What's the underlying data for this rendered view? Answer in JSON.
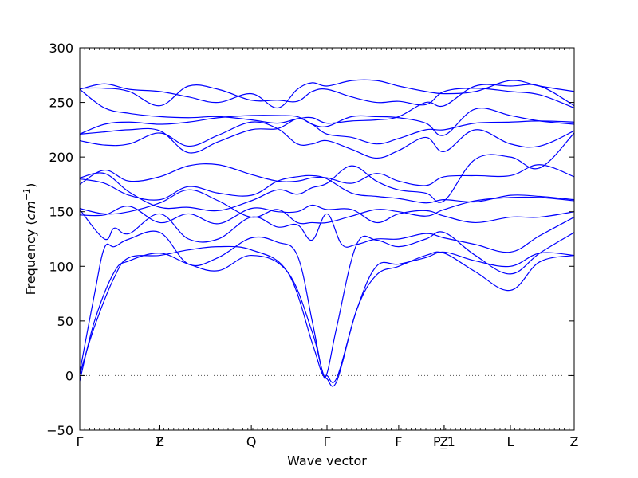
{
  "chart_data": {
    "type": "line",
    "title": "",
    "xlabel": "Wave vector",
    "ylabel_prefix": "Frequency (",
    "ylabel_unit_base": "cm",
    "ylabel_unit_exp": "−1",
    "ylabel_suffix": ")",
    "ylim": [
      -50,
      300
    ],
    "yticks": [
      -50,
      0,
      50,
      100,
      150,
      200,
      250,
      300
    ],
    "xlim": [
      0,
      1
    ],
    "zero_line": true,
    "colors": {
      "band": "#0000ff",
      "axis": "#000000"
    },
    "high_symmetry_points": [
      {
        "label": "Γ",
        "x": 0.0
      },
      {
        "label": "Z",
        "x": 0.162
      },
      {
        "label": "F",
        "x": 0.162
      },
      {
        "label": "Q",
        "x": 0.347
      },
      {
        "label": "Γ",
        "x": 0.5
      },
      {
        "label": "F",
        "x": 0.645
      },
      {
        "label": "P_1",
        "x": 0.737
      },
      {
        "label": "Z",
        "x": 0.737
      },
      {
        "label": "L",
        "x": 0.871
      },
      {
        "label": "Z",
        "x": 1.0
      }
    ],
    "series": [
      {
        "x": [
          0,
          0.03,
          0.07,
          0.1,
          0.162,
          0.22,
          0.28,
          0.347,
          0.42,
          0.47,
          0.49,
          0.5,
          0.52,
          0.56,
          0.6,
          0.645,
          0.7,
          0.737,
          0.8,
          0.871,
          0.93,
          1.0
        ],
        "y": [
          1,
          45,
          90,
          108,
          110,
          115,
          118,
          115,
          95,
          30,
          2,
          0,
          -2,
          60,
          100,
          102,
          108,
          113,
          105,
          100,
          112,
          110
        ]
      },
      {
        "x": [
          0,
          0.03,
          0.07,
          0.1,
          0.162,
          0.22,
          0.28,
          0.347,
          0.42,
          0.47,
          0.49,
          0.5,
          0.52,
          0.56,
          0.6,
          0.645,
          0.7,
          0.737,
          0.8,
          0.871,
          0.93,
          1.0
        ],
        "y": [
          -5,
          50,
          95,
          105,
          112,
          102,
          96,
          110,
          95,
          40,
          5,
          -3,
          -5,
          60,
          92,
          100,
          110,
          112,
          95,
          78,
          104,
          110
        ]
      },
      {
        "x": [
          0,
          0.03,
          0.05,
          0.07,
          0.1,
          0.162,
          0.22,
          0.28,
          0.347,
          0.4,
          0.44,
          0.47,
          0.49,
          0.5,
          0.52,
          0.56,
          0.6,
          0.645,
          0.7,
          0.737,
          0.8,
          0.871,
          0.93,
          1.0
        ],
        "y": [
          3,
          75,
          117,
          118,
          125,
          131,
          102,
          108,
          126,
          122,
          110,
          50,
          5,
          2,
          45,
          120,
          124,
          118,
          125,
          131,
          110,
          93,
          112,
          131
        ]
      },
      {
        "x": [
          0,
          0.05,
          0.07,
          0.1,
          0.162,
          0.22,
          0.28,
          0.347,
          0.4,
          0.44,
          0.47,
          0.5,
          0.53,
          0.56,
          0.6,
          0.645,
          0.7,
          0.737,
          0.8,
          0.871,
          0.93,
          1.0
        ],
        "y": [
          152,
          125,
          135,
          130,
          148,
          125,
          125,
          145,
          136,
          138,
          124,
          148,
          120,
          120,
          125,
          125,
          130,
          126,
          120,
          113,
          128,
          145
        ]
      },
      {
        "x": [
          0,
          0.05,
          0.1,
          0.162,
          0.22,
          0.28,
          0.347,
          0.4,
          0.44,
          0.47,
          0.5,
          0.55,
          0.6,
          0.645,
          0.7,
          0.737,
          0.8,
          0.871,
          0.93,
          1.0
        ],
        "y": [
          147,
          147,
          155,
          140,
          148,
          139,
          153,
          150,
          150,
          156,
          152,
          152,
          140,
          148,
          151,
          146,
          140,
          145,
          145,
          150
        ]
      },
      {
        "x": [
          0,
          0.05,
          0.1,
          0.162,
          0.22,
          0.28,
          0.347,
          0.4,
          0.44,
          0.47,
          0.5,
          0.55,
          0.6,
          0.645,
          0.7,
          0.737,
          0.8,
          0.871,
          0.93,
          1.0
        ],
        "y": [
          153,
          148,
          150,
          158,
          170,
          160,
          145,
          152,
          140,
          140,
          140,
          146,
          152,
          150,
          146,
          152,
          160,
          163,
          163,
          160
        ]
      },
      {
        "x": [
          0,
          0.05,
          0.1,
          0.162,
          0.22,
          0.28,
          0.347,
          0.4,
          0.44,
          0.47,
          0.5,
          0.55,
          0.6,
          0.645,
          0.7,
          0.737,
          0.8,
          0.871,
          0.93,
          1.0
        ],
        "y": [
          175,
          188,
          178,
          182,
          192,
          193,
          184,
          178,
          178,
          181,
          181,
          176,
          185,
          178,
          174,
          182,
          183,
          183,
          193,
          182
        ]
      },
      {
        "x": [
          0,
          0.05,
          0.1,
          0.162,
          0.22,
          0.28,
          0.347,
          0.4,
          0.44,
          0.47,
          0.5,
          0.55,
          0.6,
          0.645,
          0.7,
          0.737,
          0.8,
          0.871,
          0.93,
          1.0
        ],
        "y": [
          180,
          176,
          165,
          161,
          173,
          167,
          165,
          178,
          182,
          183,
          180,
          167,
          164,
          162,
          158,
          161,
          159,
          165,
          164,
          161
        ]
      },
      {
        "x": [
          0,
          0.05,
          0.1,
          0.162,
          0.22,
          0.28,
          0.347,
          0.4,
          0.44,
          0.47,
          0.5,
          0.55,
          0.6,
          0.645,
          0.7,
          0.737,
          0.8,
          0.871,
          0.93,
          1.0
        ],
        "y": [
          181,
          185,
          168,
          154,
          154,
          151,
          160,
          170,
          166,
          172,
          176,
          192,
          178,
          170,
          167,
          160,
          198,
          200,
          190,
          222
        ]
      },
      {
        "x": [
          0,
          0.05,
          0.1,
          0.162,
          0.22,
          0.28,
          0.347,
          0.4,
          0.44,
          0.47,
          0.5,
          0.55,
          0.6,
          0.645,
          0.7,
          0.737,
          0.8,
          0.871,
          0.93,
          1.0
        ],
        "y": [
          215,
          211,
          212,
          222,
          210,
          220,
          232,
          226,
          212,
          212,
          215,
          207,
          199,
          206,
          218,
          205,
          225,
          212,
          210,
          224
        ]
      },
      {
        "x": [
          0,
          0.05,
          0.1,
          0.162,
          0.22,
          0.28,
          0.347,
          0.4,
          0.44,
          0.47,
          0.5,
          0.55,
          0.6,
          0.645,
          0.7,
          0.737,
          0.8,
          0.871,
          0.93,
          1.0
        ],
        "y": [
          221,
          223,
          225,
          224,
          204,
          214,
          225,
          226,
          235,
          230,
          221,
          218,
          212,
          217,
          225,
          225,
          231,
          232,
          233,
          232
        ]
      },
      {
        "x": [
          0,
          0.05,
          0.1,
          0.162,
          0.22,
          0.28,
          0.347,
          0.4,
          0.44,
          0.47,
          0.5,
          0.55,
          0.6,
          0.645,
          0.7,
          0.737,
          0.8,
          0.871,
          0.93,
          1.0
        ],
        "y": [
          221,
          230,
          232,
          230,
          232,
          236,
          238,
          238,
          237,
          230,
          228,
          237,
          237,
          236,
          231,
          220,
          244,
          238,
          233,
          230
        ]
      },
      {
        "x": [
          0,
          0.05,
          0.1,
          0.162,
          0.22,
          0.28,
          0.347,
          0.4,
          0.44,
          0.47,
          0.5,
          0.55,
          0.6,
          0.645,
          0.7,
          0.737,
          0.8,
          0.871,
          0.93,
          1.0
        ],
        "y": [
          262,
          245,
          240,
          237,
          236,
          237,
          234,
          231,
          235,
          236,
          231,
          233,
          234,
          237,
          250,
          247,
          265,
          265,
          265,
          247
        ]
      },
      {
        "x": [
          0,
          0.05,
          0.1,
          0.162,
          0.22,
          0.28,
          0.347,
          0.4,
          0.44,
          0.47,
          0.5,
          0.55,
          0.6,
          0.645,
          0.7,
          0.737,
          0.8,
          0.871,
          0.93,
          1.0
        ],
        "y": [
          263,
          263,
          260,
          247,
          265,
          262,
          252,
          252,
          251,
          260,
          262,
          255,
          250,
          251,
          248,
          260,
          263,
          260,
          257,
          245
        ]
      },
      {
        "x": [
          0,
          0.05,
          0.1,
          0.162,
          0.22,
          0.28,
          0.347,
          0.4,
          0.44,
          0.47,
          0.5,
          0.55,
          0.6,
          0.645,
          0.7,
          0.737,
          0.8,
          0.871,
          0.93,
          1.0
        ],
        "y": [
          262,
          267,
          262,
          260,
          255,
          250,
          258,
          245,
          262,
          268,
          265,
          270,
          270,
          265,
          260,
          258,
          260,
          270,
          265,
          260
        ]
      }
    ]
  }
}
